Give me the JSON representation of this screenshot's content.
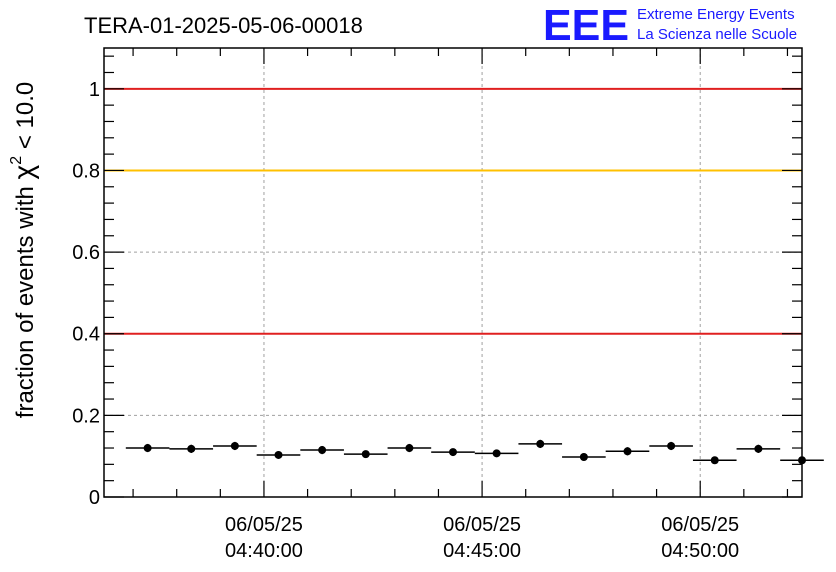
{
  "chart_data": {
    "type": "scatter",
    "title": "TERA-01-2025-05-06-00018",
    "ylabel_prefix": "fraction of events with ",
    "ylabel_symbol": "χ",
    "ylabel_superscript": "2",
    "ylabel_suffix": " < 10.0",
    "xlabel": "",
    "logo": {
      "mark": "EEE",
      "line1": "Extreme Energy Events",
      "line2": "La Scienza nelle Scuole"
    },
    "xlim": [
      "06/05/25 04:36:20",
      "06/05/25 04:52:20"
    ],
    "ylim": [
      0,
      1.1
    ],
    "yticks": [
      0,
      0.2,
      0.4,
      0.6,
      0.8,
      1
    ],
    "ytick_labels": [
      "0",
      "0.2",
      "0.4",
      "0.6",
      "0.8",
      "1"
    ],
    "xticks": [
      {
        "date": "06/05/25",
        "time": "04:40:00"
      },
      {
        "date": "06/05/25",
        "time": "04:45:00"
      },
      {
        "date": "06/05/25",
        "time": "04:50:00"
      }
    ],
    "grid": true,
    "reference_lines": [
      {
        "y": 1.0,
        "color": "#e02020"
      },
      {
        "y": 0.8,
        "color": "#ffc000"
      },
      {
        "y": 0.4,
        "color": "#e02020"
      }
    ],
    "point_color": "#000000",
    "bin_width_seconds": 60,
    "series": [
      {
        "x": [
          "04:37:20",
          "04:38:20",
          "04:39:20",
          "04:40:20",
          "04:41:20",
          "04:42:20",
          "04:43:20",
          "04:44:20",
          "04:45:20",
          "04:46:20",
          "04:47:20",
          "04:48:20",
          "04:49:20",
          "04:50:20",
          "04:51:20",
          "04:52:20"
        ],
        "y": [
          0.12,
          0.118,
          0.125,
          0.103,
          0.115,
          0.105,
          0.12,
          0.11,
          0.107,
          0.13,
          0.098,
          0.112,
          0.125,
          0.09,
          0.118,
          0.09
        ],
        "yerr": [
          0.01,
          0.01,
          0.01,
          0.009,
          0.01,
          0.009,
          0.01,
          0.009,
          0.009,
          0.01,
          0.009,
          0.01,
          0.01,
          0.009,
          0.01,
          0.009
        ]
      }
    ]
  }
}
